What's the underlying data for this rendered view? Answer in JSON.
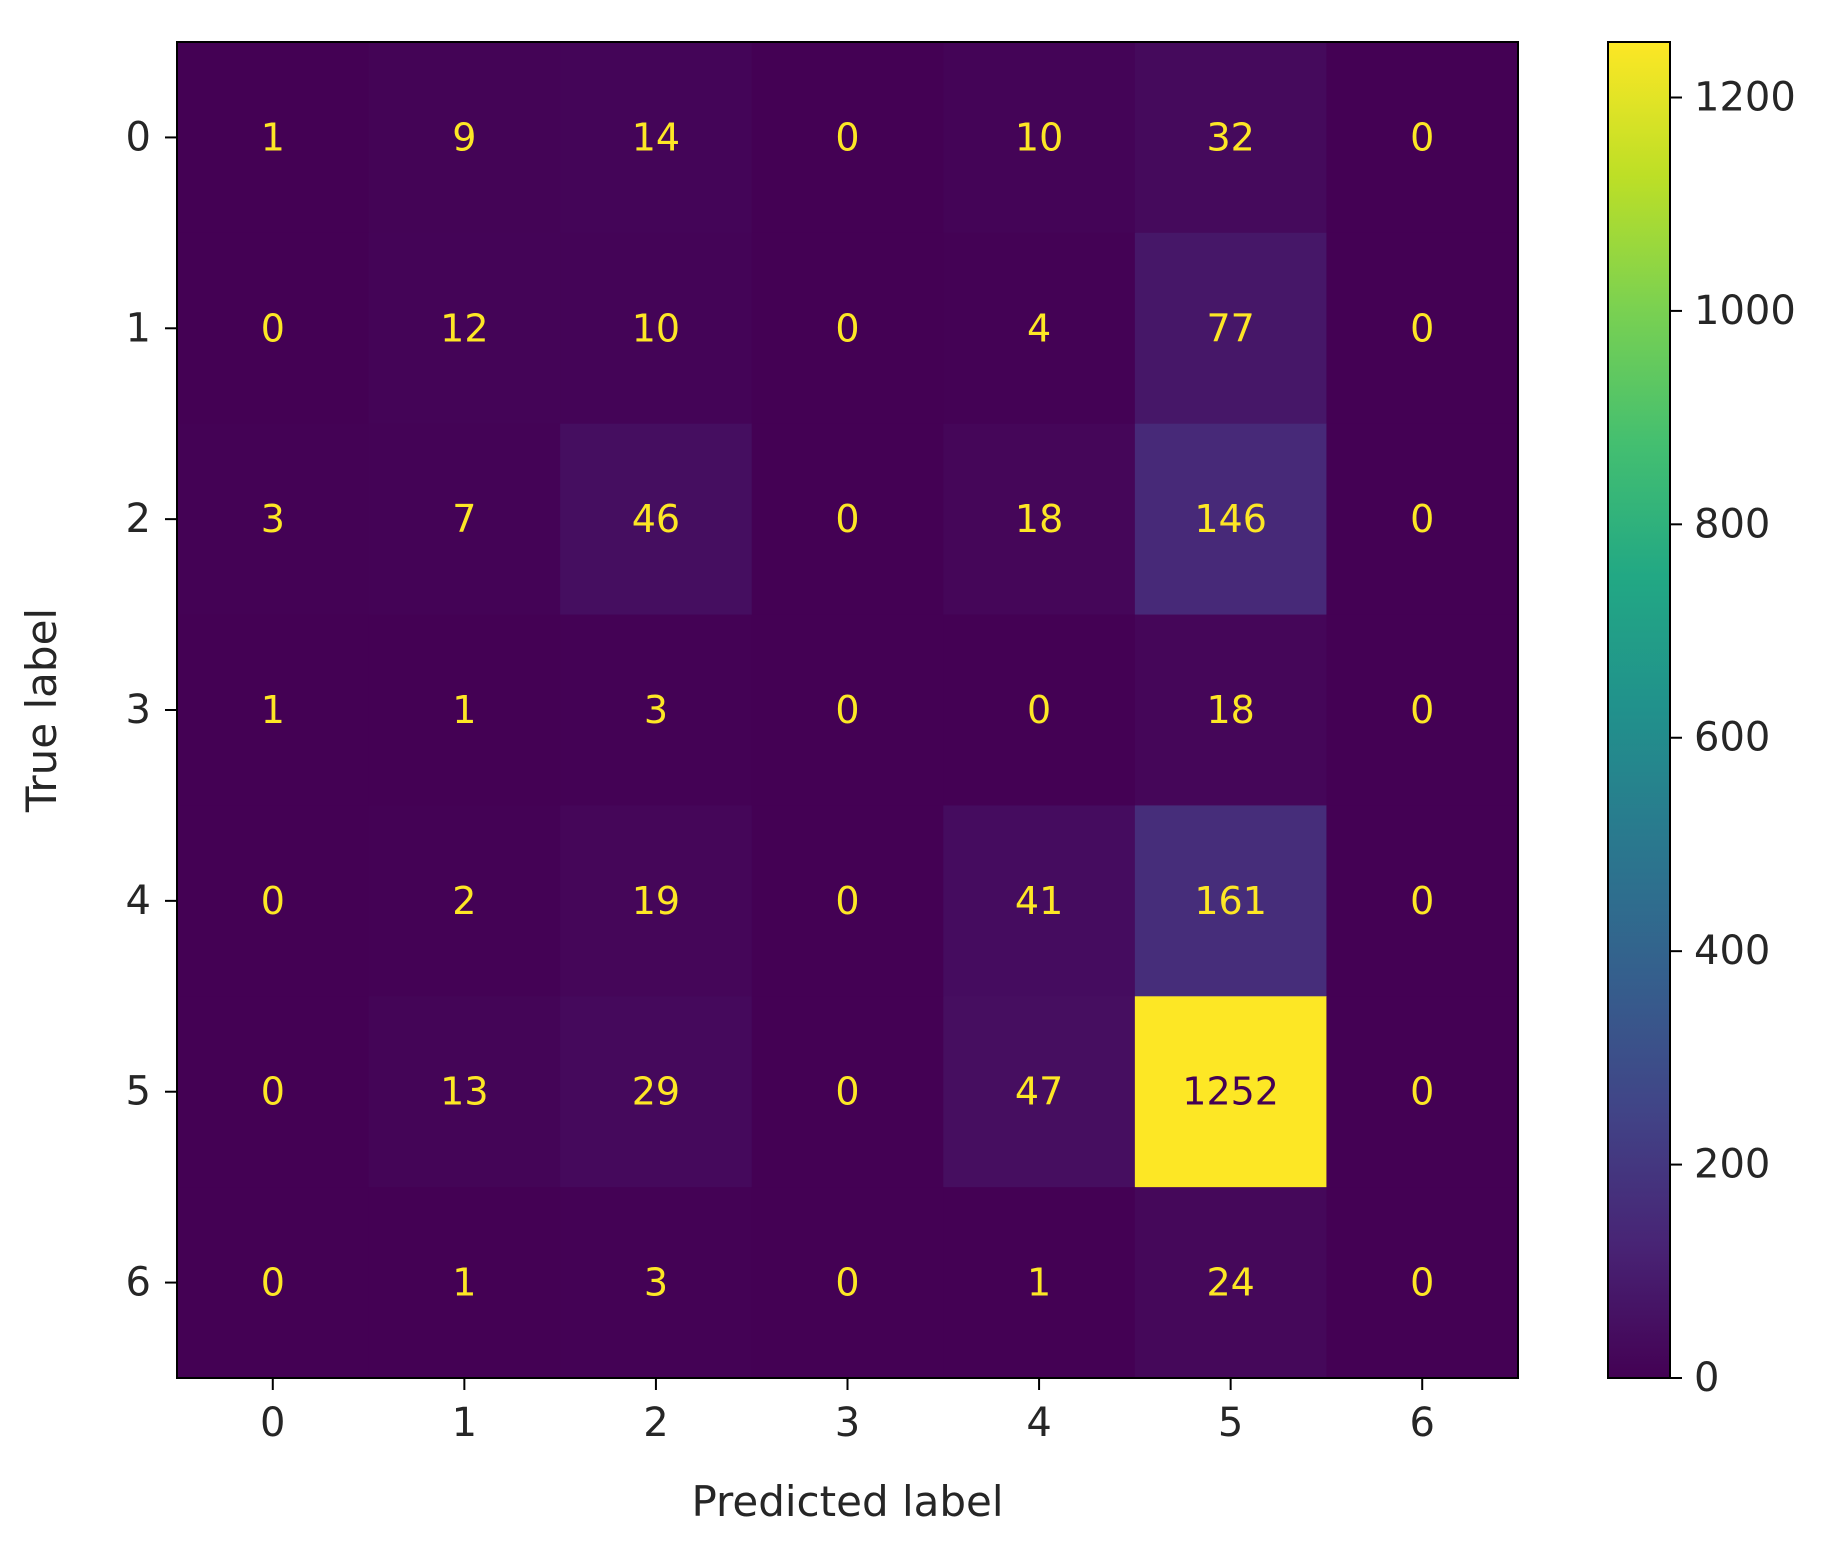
{
  "chart_data": {
    "type": "heatmap",
    "title": "",
    "xlabel": "Predicted label",
    "ylabel": "True label",
    "x_categories": [
      "0",
      "1",
      "2",
      "3",
      "4",
      "5",
      "6"
    ],
    "y_categories": [
      "0",
      "1",
      "2",
      "3",
      "4",
      "5",
      "6"
    ],
    "values": [
      [
        1,
        9,
        14,
        0,
        10,
        32,
        0
      ],
      [
        0,
        12,
        10,
        0,
        4,
        77,
        0
      ],
      [
        3,
        7,
        46,
        0,
        18,
        146,
        0
      ],
      [
        1,
        1,
        3,
        0,
        0,
        18,
        0
      ],
      [
        0,
        2,
        19,
        0,
        41,
        161,
        0
      ],
      [
        0,
        13,
        29,
        0,
        47,
        1252,
        0
      ],
      [
        0,
        1,
        3,
        0,
        1,
        24,
        0
      ]
    ],
    "colormap": "viridis",
    "color_range": [
      0,
      1252
    ],
    "colorbar_ticks": [
      0,
      200,
      400,
      600,
      800,
      1000,
      1200
    ],
    "colorbar_tick_labels": [
      "0",
      "200",
      "400",
      "600",
      "800",
      "1000",
      "1200"
    ],
    "text_colors": {
      "on_dark": "#fde725",
      "on_light": "#440154"
    },
    "grid": false,
    "legend": "colorbar-right"
  }
}
